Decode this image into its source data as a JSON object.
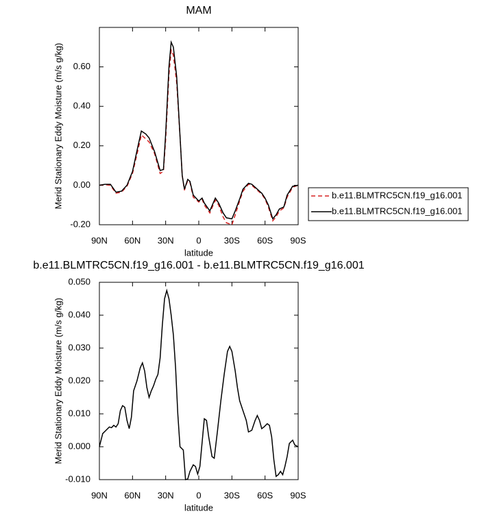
{
  "chart_data": [
    {
      "type": "line",
      "title": "MAM",
      "xlabel": "latitude",
      "ylabel": "Merid Stationary Eddy Moisture (m/s g/kg)",
      "x": [
        90,
        85,
        80,
        75,
        70,
        65,
        60,
        55,
        52,
        48,
        45,
        40,
        35,
        32,
        30,
        27,
        25,
        23,
        20,
        17,
        15,
        13,
        10,
        8,
        5,
        0,
        -3,
        -5,
        -10,
        -15,
        -18,
        -22,
        -25,
        -30,
        -33,
        -37,
        -40,
        -45,
        -48,
        -52,
        -57,
        -60,
        -63,
        -67,
        -70,
        -73,
        -77,
        -80,
        -85,
        -90
      ],
      "series": [
        {
          "name": "b.e11.BLMTRC5CN.f19_g16.001",
          "color": "#d62020",
          "style": "dashed",
          "values": [
            0,
            0.003,
            0,
            -0.04,
            -0.035,
            -0.005,
            0.06,
            0.18,
            0.255,
            0.235,
            0.22,
            0.16,
            0.06,
            0.07,
            0.23,
            0.56,
            0.685,
            0.66,
            0.52,
            0.25,
            0.05,
            -0.025,
            0.025,
            0.015,
            -0.06,
            -0.085,
            -0.07,
            -0.1,
            -0.14,
            -0.075,
            -0.1,
            -0.16,
            -0.19,
            -0.2,
            -0.15,
            -0.08,
            -0.03,
            0.005,
            0,
            -0.02,
            -0.045,
            -0.07,
            -0.11,
            -0.18,
            -0.16,
            -0.13,
            -0.115,
            -0.06,
            -0.01,
            0
          ]
        },
        {
          "name": "b.e11.BLMTRC5CN.f19_g16.001",
          "color": "#000000",
          "style": "solid",
          "values": [
            0,
            0.005,
            0.005,
            -0.035,
            -0.03,
            0,
            0.07,
            0.2,
            0.275,
            0.26,
            0.24,
            0.17,
            0.075,
            0.08,
            0.26,
            0.6,
            0.725,
            0.7,
            0.55,
            0.25,
            0.05,
            -0.02,
            0.03,
            0.02,
            -0.05,
            -0.08,
            -0.065,
            -0.09,
            -0.13,
            -0.065,
            -0.09,
            -0.14,
            -0.165,
            -0.17,
            -0.13,
            -0.07,
            -0.02,
            0.01,
            0.005,
            -0.015,
            -0.04,
            -0.065,
            -0.1,
            -0.17,
            -0.15,
            -0.12,
            -0.11,
            -0.05,
            -0.005,
            0
          ]
        }
      ],
      "xlim": [
        90,
        -90
      ],
      "xticks": [
        {
          "value": 90,
          "label": "90N"
        },
        {
          "value": 60,
          "label": "60N"
        },
        {
          "value": 30,
          "label": "30N"
        },
        0,
        {
          "value": -30,
          "label": "30S"
        },
        {
          "value": -60,
          "label": "60S"
        },
        {
          "value": -90,
          "label": "90S"
        }
      ],
      "ylim": [
        -0.2,
        0.8
      ],
      "yticks": [
        {
          "value": -0.2,
          "label": "-0.20"
        },
        {
          "value": 0,
          "label": "0.00"
        },
        {
          "value": 0.2,
          "label": "0.20"
        },
        {
          "value": 0.4,
          "label": "0.40"
        },
        {
          "value": 0.6,
          "label": "0.60"
        }
      ],
      "legend": "right"
    },
    {
      "type": "line",
      "title": "b.e11.BLMTRC5CN.f19_g16.001 - b.e11.BLMTRC5CN.f19_g16.001",
      "xlabel": "latitude",
      "ylabel": "Merid Stationary Eddy Moisture (m/s g/kg)",
      "x": [
        90,
        87,
        84,
        81,
        79,
        77,
        75,
        73,
        71,
        69,
        67,
        65,
        63,
        61,
        59,
        56,
        53,
        51,
        49,
        47,
        45,
        43,
        41,
        39,
        37,
        35,
        33,
        31,
        29,
        27,
        25,
        23,
        21,
        19,
        17,
        14,
        12,
        10,
        8,
        5,
        3,
        1,
        -1,
        -5,
        -7,
        -9,
        -12,
        -14,
        -17,
        -20,
        -23,
        -26,
        -28,
        -30,
        -33,
        -35,
        -37,
        -40,
        -43,
        -45,
        -48,
        -51,
        -53,
        -55,
        -57,
        -59,
        -62,
        -64,
        -66,
        -68,
        -70,
        -72,
        -74,
        -76,
        -78,
        -80,
        -82,
        -85,
        -87,
        -90
      ],
      "color": "#000000",
      "values": [
        0,
        0.004,
        0.005,
        0.006,
        0.0058,
        0.0065,
        0.006,
        0.007,
        0.011,
        0.0125,
        0.012,
        0.008,
        0.0055,
        0.009,
        0.017,
        0.02,
        0.024,
        0.0255,
        0.023,
        0.018,
        0.015,
        0.017,
        0.0185,
        0.0205,
        0.022,
        0.027,
        0.037,
        0.045,
        0.0475,
        0.045,
        0.04,
        0.034,
        0.024,
        0.01,
        0,
        -0.001,
        -0.01,
        -0.0098,
        -0.0075,
        -0.0055,
        -0.006,
        -0.0083,
        -0.006,
        0.0085,
        0.008,
        0.003,
        -0.003,
        -0.0035,
        0.005,
        0.014,
        0.022,
        0.029,
        0.0305,
        0.029,
        0.023,
        0.018,
        0.014,
        0.011,
        0.008,
        0.0045,
        0.005,
        0.008,
        0.0095,
        0.008,
        0.0055,
        0.006,
        0.007,
        0.0065,
        0.003,
        -0.004,
        -0.009,
        -0.0085,
        -0.0075,
        -0.0085,
        -0.006,
        -0.003,
        0.001,
        0.002,
        0.0005,
        0
      ],
      "xlim": [
        90,
        -90
      ],
      "xticks": [
        {
          "value": 90,
          "label": "90N"
        },
        {
          "value": 60,
          "label": "60N"
        },
        {
          "value": 30,
          "label": "30N"
        },
        0,
        {
          "value": -30,
          "label": "30S"
        },
        {
          "value": -60,
          "label": "60S"
        },
        {
          "value": -90,
          "label": "90S"
        }
      ],
      "ylim": [
        -0.01,
        0.05
      ],
      "yticks": [
        {
          "value": -0.01,
          "label": "-0.010"
        },
        {
          "value": 0,
          "label": "0.000"
        },
        {
          "value": 0.01,
          "label": "0.010"
        },
        {
          "value": 0.02,
          "label": "0.020"
        },
        {
          "value": 0.03,
          "label": "0.030"
        },
        {
          "value": 0.04,
          "label": "0.040"
        },
        {
          "value": 0.05,
          "label": "0.050"
        }
      ]
    }
  ]
}
